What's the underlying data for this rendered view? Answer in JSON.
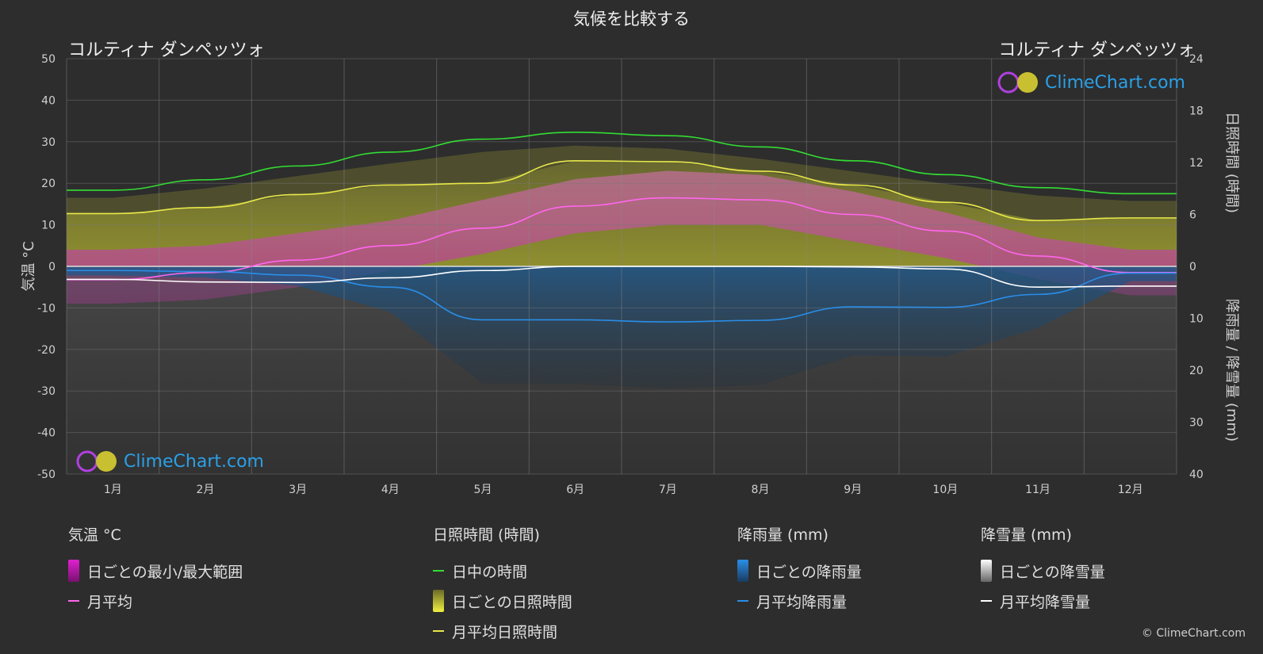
{
  "title": "気候を比較する",
  "location_left": "コルティナ ダンペッツォ",
  "location_right": "コルティナ ダンペッツォ",
  "logo_text": "ClimeChart.com",
  "copyright": "© ClimeChart.com",
  "legend": {
    "temp": {
      "heading": "気温 °C",
      "range": "日ごとの最小/最大範囲",
      "avg": "月平均"
    },
    "sun": {
      "heading": "日照時間 (時間)",
      "daylight": "日中の時間",
      "daily": "日ごとの日照時間",
      "avg": "月平均日照時間"
    },
    "rain": {
      "heading": "降雨量 (mm)",
      "daily": "日ごとの降雨量",
      "avg": "月平均降雨量"
    },
    "snow": {
      "heading": "降雪量 (mm)",
      "daily": "日ごとの降雪量",
      "avg": "月平均降雪量"
    }
  },
  "colors": {
    "background": "#2d2d2d",
    "daylight": "#33dd33",
    "sunshine": "#e8e84a",
    "temp_avg": "#ff66ee",
    "temp_range": "#e020d0",
    "rain": "#2a8ee8",
    "snow": "#ffffff"
  },
  "chart_data": {
    "type": "line",
    "categories": [
      "1月",
      "2月",
      "3月",
      "4月",
      "5月",
      "6月",
      "7月",
      "8月",
      "9月",
      "10月",
      "11月",
      "12月"
    ],
    "left_axis": {
      "label": "気温 °C",
      "ticks": [
        50,
        40,
        30,
        20,
        10,
        0,
        -10,
        -20,
        -30,
        -40,
        -50
      ],
      "range": [
        -50,
        50
      ]
    },
    "right_axis_top": {
      "label": "日照時間 (時間)",
      "ticks": [
        24,
        18,
        12,
        6,
        0
      ],
      "range": [
        0,
        24
      ]
    },
    "right_axis_bottom": {
      "label": "降雨量 / 降雪量 (mm)",
      "ticks": [
        0,
        10,
        20,
        30,
        40
      ],
      "range": [
        0,
        40
      ]
    },
    "grid": true,
    "series": [
      {
        "name": "日中の時間",
        "axis": "sun",
        "values": [
          8.8,
          10.0,
          11.6,
          13.2,
          14.7,
          15.5,
          15.1,
          13.8,
          12.2,
          10.6,
          9.1,
          8.4
        ]
      },
      {
        "name": "月平均日照時間",
        "axis": "sun",
        "values": [
          6.1,
          6.8,
          8.3,
          9.4,
          9.6,
          12.2,
          12.1,
          11.0,
          9.4,
          7.4,
          5.3,
          5.6
        ]
      },
      {
        "name": "月平均",
        "axis": "temp",
        "values": [
          -3.2,
          -1.5,
          1.5,
          5.0,
          9.2,
          14.5,
          16.5,
          16.0,
          12.5,
          8.5,
          2.5,
          -1.5
        ]
      },
      {
        "name": "月平均降雨量",
        "axis": "precip",
        "values": [
          0.8,
          1.0,
          1.7,
          4.0,
          10.3,
          10.3,
          10.7,
          10.4,
          7.8,
          7.9,
          5.4,
          1.3
        ]
      },
      {
        "name": "月平均降雪量",
        "axis": "precip",
        "values": [
          2.5,
          3.0,
          3.1,
          2.2,
          0.8,
          0.0,
          0.0,
          0.0,
          0.1,
          0.5,
          4.0,
          3.8
        ]
      }
    ],
    "temp_range_daily": {
      "min": [
        -9,
        -8,
        -5,
        -1,
        3,
        8,
        10,
        10,
        6,
        2,
        -3,
        -7
      ],
      "max": [
        4,
        5,
        8,
        11,
        16,
        21,
        23,
        22,
        18,
        13,
        7,
        4
      ]
    }
  }
}
